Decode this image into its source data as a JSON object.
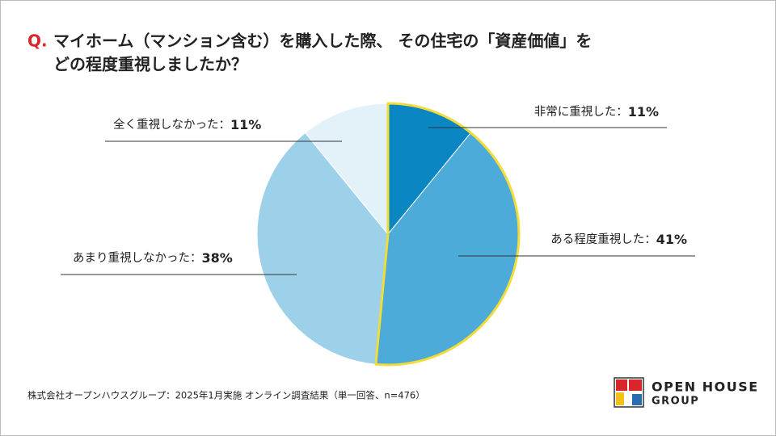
{
  "chart_data": {
    "type": "pie",
    "question_marker": "Q.",
    "title": [
      "マイホーム（マンション含む）を購入した際、 その住宅の「資産価値」を",
      "どの程度重視しましたか？"
    ],
    "categories": [
      "非常に重視した：",
      "ある程度重視した：",
      "あまり重視しなかった：",
      "全く重視しなかった："
    ],
    "values": [
      11,
      41,
      38,
      11
    ],
    "value_labels": [
      "11%",
      "41%",
      "38%",
      "11%"
    ],
    "colors": [
      "#0a86c3",
      "#4cabd8",
      "#9dd1e9",
      "#e3f1f9"
    ],
    "outlines": [
      "#f2dc3a",
      "#f2dc3a",
      null,
      null
    ]
  },
  "source": "株式会社オープンハウスグループ：2025年1月実施 オンライン調査結果（単一回答、n=476）",
  "logo": {
    "line1": "OPEN HOUSE",
    "line2": "GROUP"
  }
}
